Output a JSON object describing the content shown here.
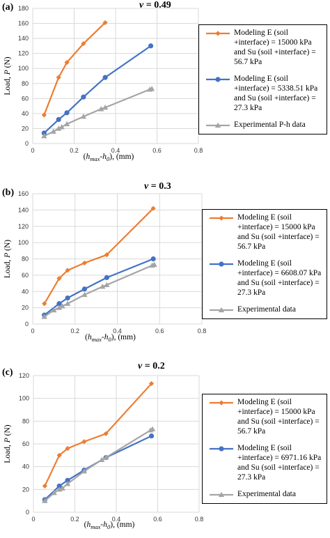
{
  "chart_data": [
    {
      "type": "line",
      "panel_label": "(a)",
      "title_symbol": "ν",
      "title_value": "= 0.49",
      "xlabel_prefix": "(",
      "xlabel_h1": "h",
      "xlabel_sub1": "max",
      "xlabel_h2": "-h",
      "xlabel_sub2": "0",
      "xlabel_suffix": "), (mm)",
      "ylabel_main": "Load, ",
      "ylabel_var": "P",
      "ylabel_unit": " (N)",
      "xlim": [
        0,
        0.8
      ],
      "ylim": [
        0,
        180
      ],
      "xticks": [
        "0",
        "0.2",
        "0.4",
        "0.6",
        "0.8"
      ],
      "yticks": [
        "0",
        "20",
        "40",
        "60",
        "80",
        "100",
        "120",
        "140",
        "160",
        "180"
      ],
      "grid": true,
      "legend_position": "right",
      "series": [
        {
          "name": "Modeling E (soil +interface) = 15000 kPa and Su (soil +interface)  = 56.7 kPa",
          "color": "#ED7D31",
          "marker": "diamond",
          "x": [
            0.055,
            0.125,
            0.165,
            0.245,
            0.35
          ],
          "y": [
            38,
            88,
            108,
            133,
            161
          ]
        },
        {
          "name": "Modeling E (soil +interface) = 5338.51 kPa and Su (soil +interface) = 27.3 kPa",
          "color": "#4472C4",
          "marker": "circle",
          "x": [
            0.055,
            0.125,
            0.165,
            0.245,
            0.35,
            0.57
          ],
          "y": [
            14,
            32,
            41,
            62,
            88,
            130
          ]
        },
        {
          "name": "Experimental P-h data",
          "color": "#A5A5A5",
          "marker": "triangle",
          "x": [
            0.055,
            0.1,
            0.125,
            0.14,
            0.165,
            0.245,
            0.33,
            0.35,
            0.565,
            0.575
          ],
          "y": [
            10,
            16,
            20,
            22,
            26,
            36,
            46,
            48,
            72,
            73
          ]
        }
      ]
    },
    {
      "type": "line",
      "panel_label": "(b)",
      "title_symbol": "ν",
      "title_value": "= 0.3",
      "xlabel_prefix": "(",
      "xlabel_h1": "h",
      "xlabel_sub1": "max",
      "xlabel_h2": "-h",
      "xlabel_sub2": "0",
      "xlabel_suffix": "), (mm)",
      "ylabel_main": "Load, ",
      "ylabel_var": "P",
      "ylabel_unit": " (N)",
      "xlim": [
        0,
        0.8
      ],
      "ylim": [
        0,
        160
      ],
      "xticks": [
        "0",
        "0.2",
        "0.4",
        "0.6",
        "0.8"
      ],
      "yticks": [
        "0",
        "20",
        "40",
        "60",
        "80",
        "100",
        "120",
        "140",
        "160"
      ],
      "grid": true,
      "legend_position": "right",
      "series": [
        {
          "name": "Modeling E (soil +interface) = 15000 kPa and Su (soil +interface)  = 56.7 kPa",
          "color": "#ED7D31",
          "marker": "diamond",
          "x": [
            0.055,
            0.125,
            0.165,
            0.245,
            0.35,
            0.57
          ],
          "y": [
            25,
            56,
            66,
            75,
            85,
            142
          ]
        },
        {
          "name": "Modeling E (soil +interface) = 6608.07 kPa and Su (soil +interface) = 27.3 kPa",
          "color": "#4472C4",
          "marker": "circle",
          "x": [
            0.055,
            0.125,
            0.165,
            0.245,
            0.35,
            0.57
          ],
          "y": [
            11,
            25,
            32,
            43,
            57,
            80
          ]
        },
        {
          "name": "Experimental data",
          "color": "#A5A5A5",
          "marker": "triangle",
          "x": [
            0.055,
            0.1,
            0.125,
            0.14,
            0.165,
            0.245,
            0.33,
            0.35,
            0.565,
            0.575
          ],
          "y": [
            9,
            17,
            20,
            22,
            25,
            36,
            46,
            48,
            72,
            73
          ]
        }
      ]
    },
    {
      "type": "line",
      "panel_label": "(c)",
      "title_symbol": "ν",
      "title_value": "= 0.2",
      "xlabel_prefix": "(",
      "xlabel_h1": "h",
      "xlabel_sub1": "max",
      "xlabel_h2": "-h",
      "xlabel_sub2": "0",
      "xlabel_suffix": "), (mm)",
      "ylabel_main": "Load, ",
      "ylabel_var": "P",
      "ylabel_unit": " (N)",
      "xlim": [
        0,
        0.8
      ],
      "ylim": [
        0,
        120
      ],
      "xticks": [
        "0",
        "0.2",
        "0.4",
        "0.6",
        "0.8"
      ],
      "yticks": [
        "0",
        "20",
        "40",
        "60",
        "80",
        "100",
        "120"
      ],
      "grid": true,
      "legend_position": "right",
      "series": [
        {
          "name": "Modeling E (soil +interface) = 15000 kPa and Su (soil +interface)  = 56.7 kPa",
          "color": "#ED7D31",
          "marker": "diamond",
          "x": [
            0.055,
            0.125,
            0.165,
            0.245,
            0.35,
            0.57
          ],
          "y": [
            23,
            50,
            56,
            62,
            69,
            113
          ]
        },
        {
          "name": "Modeling E (soil +interface) = 6971.16 kPa and Su (soil +interface) = 27.3 kPa",
          "color": "#4472C4",
          "marker": "circle",
          "x": [
            0.055,
            0.125,
            0.165,
            0.245,
            0.35,
            0.57
          ],
          "y": [
            11,
            23,
            28,
            37,
            48,
            67
          ]
        },
        {
          "name": "Experimental data",
          "color": "#A5A5A5",
          "marker": "triangle",
          "x": [
            0.055,
            0.1,
            0.125,
            0.14,
            0.165,
            0.245,
            0.33,
            0.35,
            0.565,
            0.575
          ],
          "y": [
            10,
            17,
            20,
            21,
            25,
            36,
            46,
            48,
            72,
            73
          ]
        }
      ]
    }
  ]
}
